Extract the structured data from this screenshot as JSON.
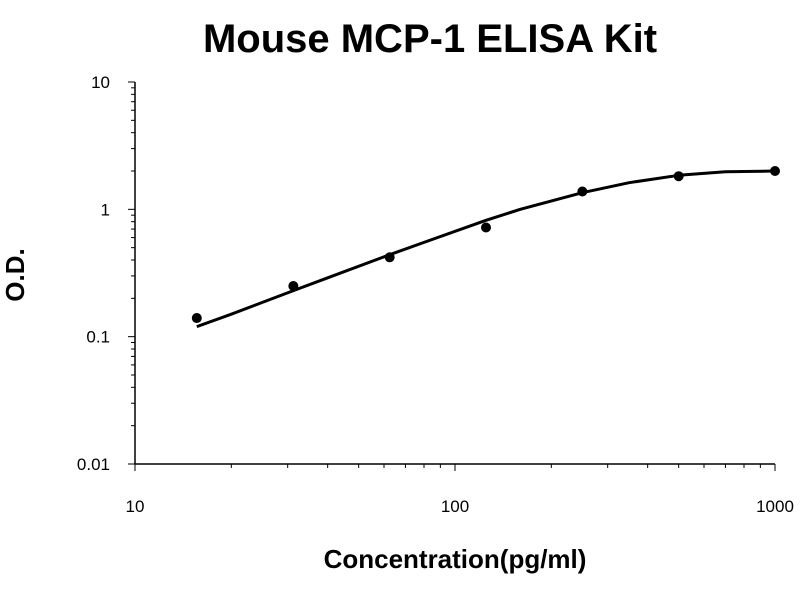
{
  "chart_data": {
    "type": "scatter",
    "title": "Mouse MCP-1 ELISA Kit",
    "xlabel": "Concentration(pg/ml)",
    "ylabel": "O.D.",
    "xscale": "log",
    "yscale": "log",
    "xlim": [
      10,
      1000
    ],
    "ylim": [
      0.01,
      10
    ],
    "x_ticks": [
      "10",
      "100",
      "1000"
    ],
    "y_ticks": [
      "0.01",
      "0.1",
      "1",
      "10"
    ],
    "grid": false,
    "legend": "none",
    "points": {
      "x": [
        15.6,
        31.25,
        62.5,
        125,
        250,
        500,
        1000
      ],
      "y": [
        0.14,
        0.25,
        0.42,
        0.72,
        1.38,
        1.82,
        2.0
      ]
    },
    "fit_curve": {
      "x": [
        15.6,
        20,
        31.25,
        40,
        62.5,
        80,
        125,
        160,
        250,
        350,
        500,
        700,
        1000
      ],
      "y": [
        0.12,
        0.15,
        0.23,
        0.29,
        0.44,
        0.55,
        0.82,
        1.0,
        1.35,
        1.62,
        1.85,
        1.97,
        2.0
      ]
    },
    "colors": {
      "points": "#000000",
      "curve": "#000000",
      "axis": "#000000"
    }
  }
}
